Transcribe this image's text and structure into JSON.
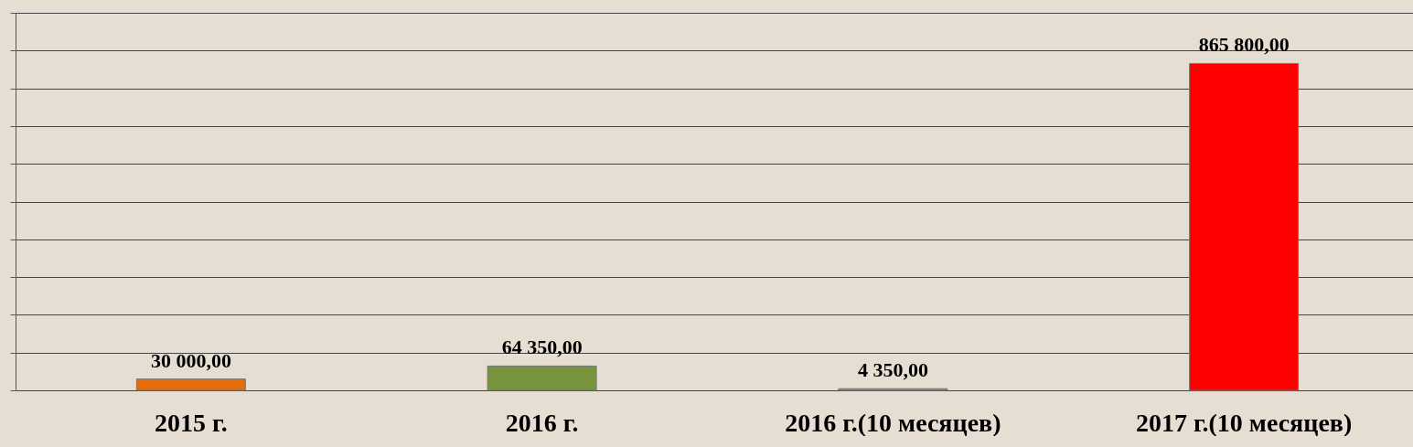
{
  "chart_data": {
    "type": "bar",
    "categories": [
      "2015 г.",
      "2016 г.",
      "2016 г.(10 месяцев)",
      "2017 г.(10 месяцев)"
    ],
    "values": [
      30000,
      64350,
      4350,
      865800
    ],
    "colors": [
      "#e46c0a",
      "#77933c",
      "#8c8c9c",
      "#ff0000"
    ],
    "value_labels": [
      "30 000,00",
      "64 350,00",
      "4 350,00",
      "865 800,00"
    ],
    "ylim": [
      0,
      1000000
    ],
    "yticks": [
      {
        "value": 0,
        "label": null
      },
      {
        "value": 100000,
        "label": null
      },
      {
        "value": 200000,
        "label": null
      },
      {
        "value": 300000,
        "label": null
      },
      {
        "value": 400000,
        "label": null
      },
      {
        "value": 500000,
        "label": null
      },
      {
        "value": 600000,
        "label": null
      },
      {
        "value": 700000,
        "label": null
      },
      {
        "value": 800000,
        "label": null
      },
      {
        "value": 900000,
        "label": null
      },
      {
        "value": 1000000,
        "label": null
      }
    ],
    "grid": "y"
  }
}
